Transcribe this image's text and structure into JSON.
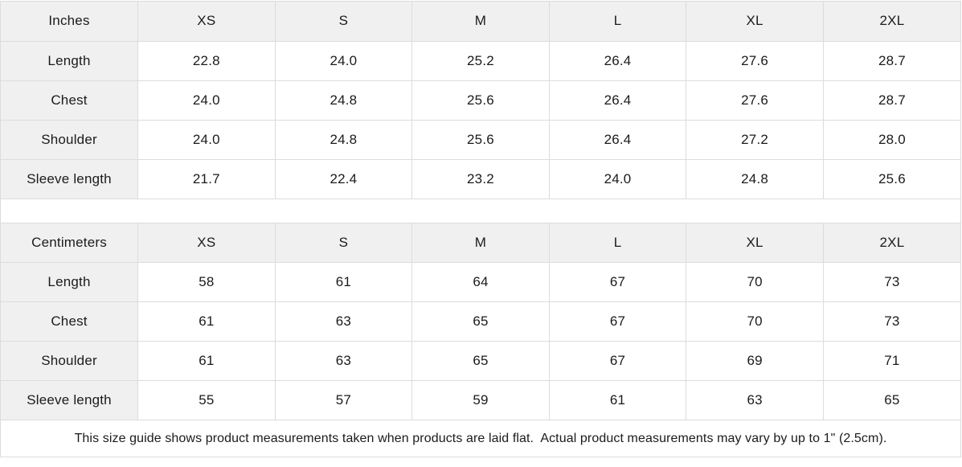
{
  "colors": {
    "header_bg": "#f0f0f0",
    "border": "#dcdcdc",
    "text": "#1b1b1b",
    "background": "#ffffff"
  },
  "tables": [
    {
      "unit_label": "Inches",
      "sizes": [
        "XS",
        "S",
        "M",
        "L",
        "XL",
        "2XL"
      ],
      "rows": [
        {
          "label": "Length",
          "values": [
            "22.8",
            "24.0",
            "25.2",
            "26.4",
            "27.6",
            "28.7"
          ]
        },
        {
          "label": "Chest",
          "values": [
            "24.0",
            "24.8",
            "25.6",
            "26.4",
            "27.6",
            "28.7"
          ]
        },
        {
          "label": "Shoulder",
          "values": [
            "24.0",
            "24.8",
            "25.6",
            "26.4",
            "27.2",
            "28.0"
          ]
        },
        {
          "label": "Sleeve length",
          "values": [
            "21.7",
            "22.4",
            "23.2",
            "24.0",
            "24.8",
            "25.6"
          ]
        }
      ]
    },
    {
      "unit_label": "Centimeters",
      "sizes": [
        "XS",
        "S",
        "M",
        "L",
        "XL",
        "2XL"
      ],
      "rows": [
        {
          "label": "Length",
          "values": [
            "58",
            "61",
            "64",
            "67",
            "70",
            "73"
          ]
        },
        {
          "label": "Chest",
          "values": [
            "61",
            "63",
            "65",
            "67",
            "70",
            "73"
          ]
        },
        {
          "label": "Shoulder",
          "values": [
            "61",
            "63",
            "65",
            "67",
            "69",
            "71"
          ]
        },
        {
          "label": "Sleeve length",
          "values": [
            "55",
            "57",
            "59",
            "61",
            "63",
            "65"
          ]
        }
      ]
    }
  ],
  "footer": {
    "note": "This size guide shows product measurements taken when products are laid flat.  Actual product measurements may vary by up to 1\" (2.5cm)."
  }
}
